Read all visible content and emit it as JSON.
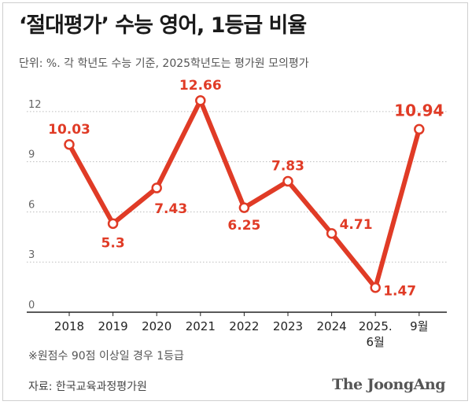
{
  "header": {
    "title": "‘절대평가’ 수능 영어, 1등급 비율",
    "subtitle": "단위: %. 각 학년도 수능 기준, 2025학년도는 평가원 모의평가"
  },
  "footer": {
    "footnote": "※원점수 90점 이상일 경우 1등급",
    "source": "자료: 한국교육과정평가원",
    "brand": "The JoongAng"
  },
  "chart_data": {
    "type": "line",
    "categories": [
      "2018",
      "2019",
      "2020",
      "2021",
      "2022",
      "2023",
      "2024",
      "2025.\n6월",
      "9월"
    ],
    "values": [
      10.03,
      5.3,
      7.43,
      12.66,
      6.25,
      7.83,
      4.71,
      1.47,
      10.94
    ],
    "data_labels": [
      "10.03",
      "5.3",
      "7.43",
      "12.66",
      "6.25",
      "7.83",
      "4.71",
      "1.47",
      "10.94"
    ],
    "ylim": [
      0,
      13.5
    ],
    "yticks": [
      0,
      3,
      6,
      9,
      12
    ],
    "grid": true,
    "line_color": "#e03b26"
  }
}
